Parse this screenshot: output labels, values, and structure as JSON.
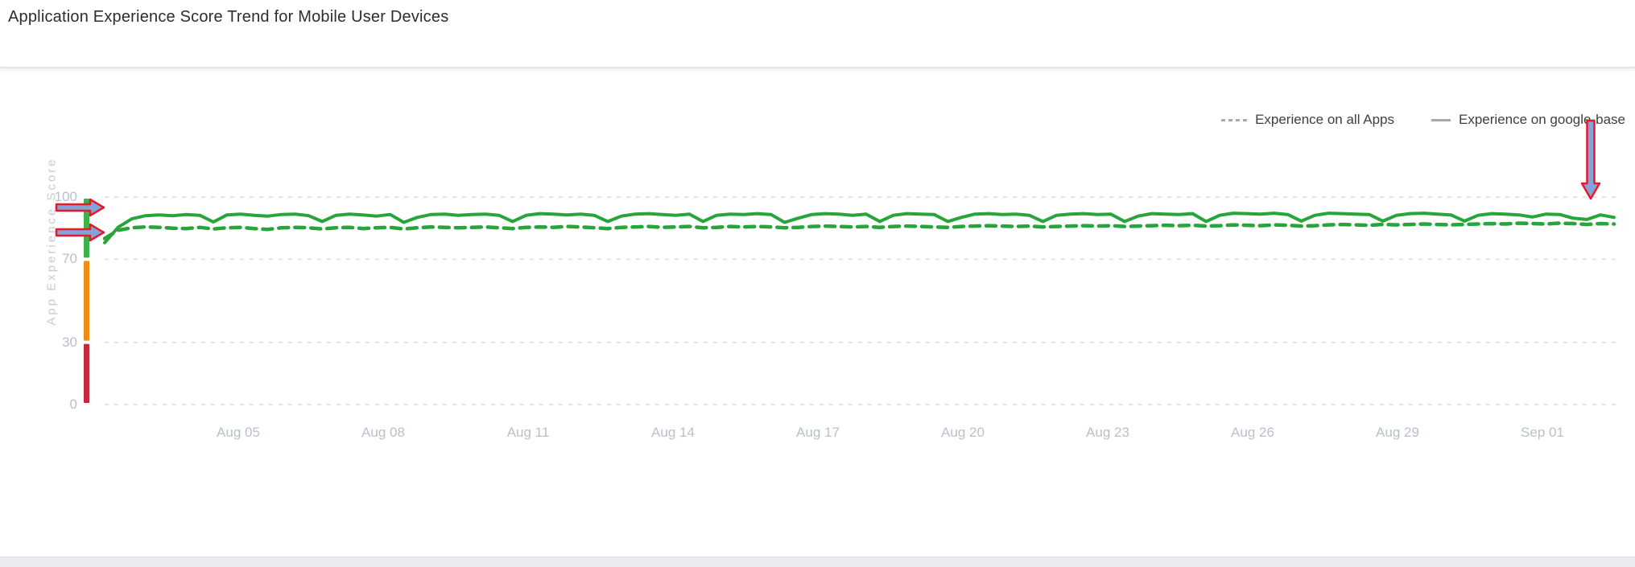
{
  "title": "Application Experience Score Trend for Mobile User Devices",
  "legend": [
    {
      "label": "Experience on all Apps",
      "style": "dashed",
      "marker_color": "#a6a9ad"
    },
    {
      "label": "Experience on google-base",
      "style": "solid",
      "marker_color": "#a6a9ad"
    }
  ],
  "chart_data": {
    "type": "line",
    "title": "Application Experience Score Trend for Mobile User Devices",
    "xlabel": "",
    "ylabel": "App Experience Score",
    "ylim": [
      0,
      100
    ],
    "yticks": [
      100,
      70,
      30,
      0
    ],
    "xticks": [
      "Aug 05",
      "Aug 08",
      "Aug 11",
      "Aug 14",
      "Aug 17",
      "Aug 20",
      "Aug 23",
      "Aug 26",
      "Aug 29",
      "Sep 01"
    ],
    "x_span": [
      "Aug 03",
      "Sep 02"
    ],
    "grid": "horizontal-dashed",
    "legend_position": "top-right",
    "line_color": "#27a53a",
    "score_bands": [
      {
        "range": [
          70,
          100
        ],
        "color": "#3bb24a",
        "meaning": "good"
      },
      {
        "range": [
          30,
          70
        ],
        "color": "#ee8d15",
        "meaning": "fair"
      },
      {
        "range": [
          0,
          30
        ],
        "color": "#c5293a",
        "meaning": "poor"
      }
    ],
    "series": [
      {
        "name": "Experience on all Apps",
        "style": "dashed",
        "approx_range": "84-88",
        "values": [
          80,
          84,
          85.2,
          85.6,
          85.4,
          85,
          84.8,
          85.4,
          84.6,
          85.2,
          85.4,
          84.8,
          84.4,
          85.2,
          85.4,
          85.2,
          84.6,
          85.2,
          85.4,
          84.8,
          85.2,
          85.4,
          84.6,
          85.2,
          85.6,
          85.4,
          85.2,
          85.4,
          85.6,
          85.2,
          84.8,
          85.4,
          85.6,
          85.4,
          85.8,
          85.6,
          85.2,
          84.8,
          85.4,
          85.6,
          85.8,
          85.4,
          85.6,
          85.8,
          85.2,
          85.4,
          85.8,
          85.6,
          85.8,
          85.6,
          85.2,
          85.4,
          85.8,
          86,
          85.8,
          85.6,
          85.8,
          85.4,
          85.8,
          86,
          85.8,
          85.6,
          85.4,
          85.8,
          86,
          86.2,
          86,
          85.8,
          86,
          85.6,
          85.8,
          86,
          86.2,
          86,
          86.2,
          85.8,
          86,
          86.2,
          86.4,
          86.2,
          86.4,
          86,
          86.2,
          86.6,
          86.4,
          86.2,
          86.6,
          86.4,
          86,
          86.2,
          86.6,
          86.8,
          86.6,
          86.4,
          86.8,
          86.6,
          86.8,
          87,
          86.8,
          86.6,
          86.8,
          87,
          87.2,
          87,
          87.4,
          87.2,
          87,
          87.4,
          87.2,
          86.8,
          87.2,
          87
        ]
      },
      {
        "name": "Experience on google-base",
        "style": "solid",
        "approx_range": "88-92",
        "values": [
          78,
          85.5,
          89.5,
          91,
          91.4,
          91,
          91.6,
          91.2,
          88,
          91.4,
          91.8,
          91.2,
          90.8,
          91.6,
          91.8,
          91,
          88.2,
          91.2,
          91.8,
          91.4,
          90.8,
          91.6,
          87.8,
          90.2,
          91.6,
          91.8,
          91.2,
          91.6,
          91.8,
          91.2,
          88.2,
          91.2,
          92,
          91.8,
          91.4,
          91.8,
          91.2,
          88.2,
          90.8,
          91.8,
          92,
          91.6,
          91.2,
          91.8,
          88.2,
          91.2,
          91.8,
          91.6,
          92,
          91.6,
          87.8,
          89.8,
          91.6,
          92,
          91.8,
          91.2,
          91.8,
          88.2,
          91.2,
          92,
          91.8,
          91.6,
          88.2,
          90.2,
          91.8,
          92,
          91.6,
          91.8,
          91.2,
          88.2,
          91.2,
          91.8,
          92,
          91.6,
          91.8,
          88.2,
          90.8,
          92,
          91.8,
          91.6,
          92,
          88.2,
          91.2,
          92.2,
          92,
          91.8,
          92.2,
          91.6,
          88.4,
          91.2,
          92.2,
          92,
          91.8,
          91.6,
          88.4,
          91.2,
          92,
          92.2,
          91.8,
          91.4,
          88.4,
          91.2,
          92,
          91.8,
          91.4,
          90.4,
          91.8,
          91.6,
          89.8,
          89.2,
          91.4,
          90.2
        ]
      }
    ],
    "annotations": [
      {
        "type": "arrow-right",
        "points_at_score": 95,
        "fill": "#84a3d8",
        "stroke": "#e51a2b"
      },
      {
        "type": "arrow-right",
        "points_at_score": 83,
        "fill": "#84a3d8",
        "stroke": "#e51a2b"
      },
      {
        "type": "arrow-down",
        "points_at_x": "Sep 01",
        "fill": "#84a3d8",
        "stroke": "#e51a2b"
      }
    ]
  }
}
